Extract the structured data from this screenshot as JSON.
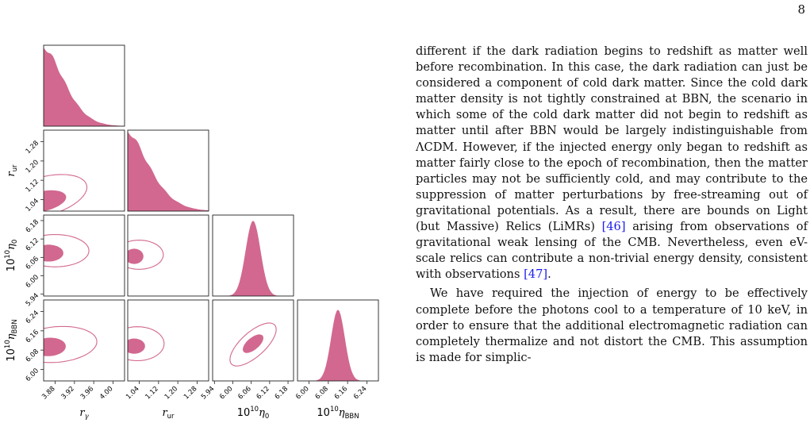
{
  "page_number": "8",
  "figure": {
    "fill_color": "#d2688f",
    "contour_color": "#d2688f",
    "parameters": [
      {
        "label": "r",
        "sub": "γ",
        "sub_sans": false,
        "ticks": [
          "3.88",
          "3.92",
          "3.96",
          "4.00"
        ]
      },
      {
        "label": "r",
        "sub": "ur",
        "sub_sans": true,
        "ticks": [
          "1.04",
          "1.12",
          "1.20",
          "1.28"
        ]
      },
      {
        "label": "10",
        "sup": "10",
        "greek": "η",
        "sub": "0",
        "sub_sans": true,
        "ticks": [
          "5.94",
          "6.00",
          "6.06",
          "6.12",
          "6.18"
        ]
      },
      {
        "label": "10",
        "sup": "10",
        "greek": "η",
        "sub": "BBN",
        "sub_sans": true,
        "ticks": [
          "6.00",
          "6.08",
          "6.16",
          "6.24"
        ]
      }
    ]
  },
  "text": {
    "p1_a": "different if the dark radiation begins to redshift as matter well before recombination. In this case, the dark radiation can just be considered a component of cold dark matter. Since the cold dark matter density is not tightly constrained at BBN, the scenario in which some of the cold dark matter did not begin to redshift as matter until after BBN would be largely indistinguishable from ΛCDM. However, if the injected energy only began to redshift as matter fairly close to the epoch of recombination, then the matter particles may not be sufficiently cold, and may contribute to the suppression of matter perturbations by free-streaming out of gravitational potentials. As a result, there are bounds on Light (but Massive) Relics (LiMRs) ",
    "ref1": "[46]",
    "p1_b": " arising from observations of gravitational weak lensing of the CMB. Nevertheless, even eV-scale relics can contribute a non-trivial energy density, consistent with observations ",
    "ref2": "[47]",
    "p1_c": ".",
    "p2": "We have required the injection of energy to be effectively complete before the photons cool to a temperature of 10 keV, in order to ensure that the additional electromagnetic radiation can completely thermalize and not distort the CMB. This assumption is made for simplic-"
  }
}
